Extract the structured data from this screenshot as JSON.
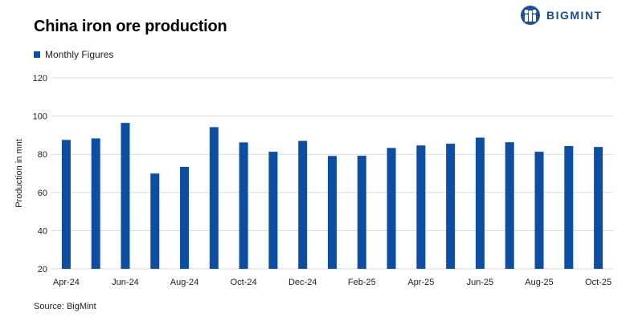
{
  "brand": {
    "logo_text": "BIGMINT",
    "brand_color": "#1b4ea1"
  },
  "source_note": "Source: BigMint",
  "chart_data": {
    "type": "bar",
    "title": "China iron ore production",
    "xlabel": "",
    "ylabel": "Production in mnt",
    "ylim": [
      20,
      120
    ],
    "yticks": [
      20,
      40,
      60,
      80,
      100,
      120
    ],
    "grid": true,
    "legend_position": "top-left",
    "bar_color": "#0a4ea5",
    "categories": [
      "Apr-24",
      "May-24",
      "Jun-24",
      "Jul-24",
      "Aug-24",
      "Sep-24",
      "Oct-24",
      "Nov-24",
      "Dec-24",
      "Jan-25",
      "Feb-25",
      "Mar-25",
      "Apr-25",
      "May-25",
      "Jun-25",
      "Jul-25",
      "Aug-25",
      "Sep-25",
      "Oct-25"
    ],
    "tick_labels_shown": [
      "Apr-24",
      "",
      "Jun-24",
      "",
      "Aug-24",
      "",
      "Oct-24",
      "",
      "Dec-24",
      "",
      "Feb-25",
      "",
      "Apr-25",
      "",
      "Jun-25",
      "",
      "Aug-25",
      "",
      "Oct-25"
    ],
    "series": [
      {
        "name": "Monthly Figures",
        "values": [
          87.5,
          88.3,
          96.4,
          69.9,
          73.4,
          94.2,
          86.2,
          81.3,
          87.0,
          79.1,
          79.2,
          83.3,
          84.6,
          85.5,
          88.7,
          86.3,
          81.3,
          84.3,
          83.8
        ]
      }
    ]
  }
}
